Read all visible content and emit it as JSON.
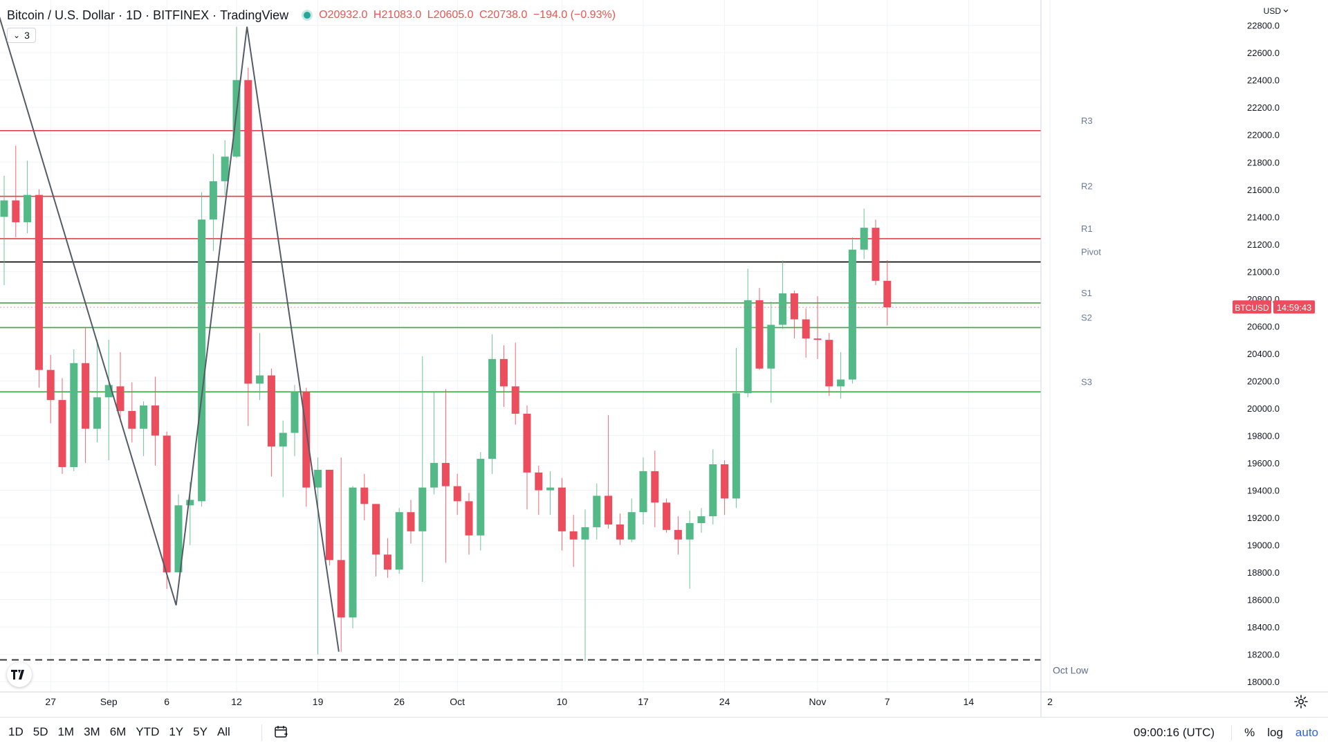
{
  "header": {
    "symbol": "Bitcoin / U.S. Dollar",
    "interval": "1D",
    "exchange": "BITFINEX",
    "source": "TradingView",
    "open_label": "O",
    "open": "20932.0",
    "high_label": "H",
    "high": "21083.0",
    "low_label": "L",
    "low": "20605.0",
    "close_label": "C",
    "close": "20738.0",
    "change": "−194.0 (−0.93%)"
  },
  "indicator_pill": {
    "count": "3"
  },
  "price_axis": {
    "currency": "USD"
  },
  "price_tag": {
    "symbol": "BTCUSD",
    "countdown": "14:59:43"
  },
  "bottom_bar": {
    "ranges": [
      "1D",
      "5D",
      "1M",
      "3M",
      "6M",
      "YTD",
      "1Y",
      "5Y",
      "All"
    ],
    "time": "09:00:16 (UTC)",
    "percent": "%",
    "log": "log",
    "auto": "auto"
  },
  "colors": {
    "up": "#53b987",
    "down": "#eb4d5c",
    "resistance": "#e03e4e",
    "support": "#3ba640",
    "pivot": "#000000",
    "accent": "#2962ff"
  },
  "icons": [
    "chevron-down-icon",
    "tradingview-logo-icon",
    "calendar-icon",
    "gear-icon"
  ],
  "chart_data": {
    "type": "candlestick",
    "ylim": [
      17900,
      22950
    ],
    "y_ticks": [
      18000,
      18200,
      18400,
      18600,
      18800,
      19000,
      19200,
      19400,
      19600,
      19800,
      20000,
      20200,
      20400,
      20600,
      20800,
      21000,
      21200,
      21400,
      21600,
      21800,
      22000,
      22200,
      22400,
      22600,
      22800
    ],
    "x_ticks": [
      {
        "label": "27",
        "i": 4
      },
      {
        "label": "Sep",
        "i": 9
      },
      {
        "label": "6",
        "i": 14
      },
      {
        "label": "12",
        "i": 20
      },
      {
        "label": "19",
        "i": 27
      },
      {
        "label": "26",
        "i": 34
      },
      {
        "label": "Oct",
        "i": 39
      },
      {
        "label": "10",
        "i": 48
      },
      {
        "label": "17",
        "i": 55
      },
      {
        "label": "24",
        "i": 62
      },
      {
        "label": "Nov",
        "i": 70
      },
      {
        "label": "7",
        "i": 76
      },
      {
        "label": "14",
        "i": 83
      },
      {
        "label": "2",
        "i": 90
      }
    ],
    "candles": [
      {
        "o": 21400,
        "h": 21700,
        "l": 20900,
        "c": 21520
      },
      {
        "o": 21520,
        "h": 21920,
        "l": 21250,
        "c": 21360
      },
      {
        "o": 21360,
        "h": 21810,
        "l": 21280,
        "c": 21560
      },
      {
        "o": 21560,
        "h": 21600,
        "l": 20150,
        "c": 20280
      },
      {
        "o": 20280,
        "h": 20390,
        "l": 19890,
        "c": 20060
      },
      {
        "o": 20060,
        "h": 20220,
        "l": 19520,
        "c": 19570
      },
      {
        "o": 19570,
        "h": 20430,
        "l": 19540,
        "c": 20330
      },
      {
        "o": 20330,
        "h": 20590,
        "l": 19600,
        "c": 19850
      },
      {
        "o": 19850,
        "h": 20500,
        "l": 19750,
        "c": 20080
      },
      {
        "o": 20080,
        "h": 20500,
        "l": 19620,
        "c": 20170
      },
      {
        "o": 20160,
        "h": 20410,
        "l": 19900,
        "c": 19980
      },
      {
        "o": 19980,
        "h": 20190,
        "l": 19750,
        "c": 19850
      },
      {
        "o": 19850,
        "h": 20050,
        "l": 19650,
        "c": 20020
      },
      {
        "o": 20020,
        "h": 20230,
        "l": 19580,
        "c": 19800
      },
      {
        "o": 19800,
        "h": 19830,
        "l": 18680,
        "c": 18800
      },
      {
        "o": 18800,
        "h": 19370,
        "l": 18800,
        "c": 19290
      },
      {
        "o": 19290,
        "h": 19460,
        "l": 19000,
        "c": 19330
      },
      {
        "o": 19320,
        "h": 21580,
        "l": 19280,
        "c": 21380
      },
      {
        "o": 21380,
        "h": 21860,
        "l": 21150,
        "c": 21660
      },
      {
        "o": 21660,
        "h": 21960,
        "l": 21560,
        "c": 21840
      },
      {
        "o": 21840,
        "h": 22790,
        "l": 21830,
        "c": 22400
      },
      {
        "o": 22400,
        "h": 22490,
        "l": 19870,
        "c": 20180
      },
      {
        "o": 20180,
        "h": 20550,
        "l": 20060,
        "c": 20240
      },
      {
        "o": 20240,
        "h": 20290,
        "l": 19500,
        "c": 19720
      },
      {
        "o": 19720,
        "h": 19910,
        "l": 19350,
        "c": 19820
      },
      {
        "o": 19820,
        "h": 20170,
        "l": 19650,
        "c": 20120
      },
      {
        "o": 20120,
        "h": 20150,
        "l": 19280,
        "c": 19420
      },
      {
        "o": 19420,
        "h": 19640,
        "l": 18200,
        "c": 19550
      },
      {
        "o": 19550,
        "h": 19550,
        "l": 18850,
        "c": 18890
      },
      {
        "o": 18890,
        "h": 19640,
        "l": 18220,
        "c": 18470
      },
      {
        "o": 18470,
        "h": 19430,
        "l": 18390,
        "c": 19420
      },
      {
        "o": 19420,
        "h": 19520,
        "l": 19180,
        "c": 19300
      },
      {
        "o": 19300,
        "h": 19300,
        "l": 18770,
        "c": 18930
      },
      {
        "o": 18930,
        "h": 19050,
        "l": 18760,
        "c": 18820
      },
      {
        "o": 18820,
        "h": 19270,
        "l": 18790,
        "c": 19240
      },
      {
        "o": 19240,
        "h": 19330,
        "l": 19010,
        "c": 19100
      },
      {
        "o": 19100,
        "h": 20380,
        "l": 18730,
        "c": 19420
      },
      {
        "o": 19420,
        "h": 20120,
        "l": 19370,
        "c": 19600
      },
      {
        "o": 19600,
        "h": 20140,
        "l": 18870,
        "c": 19430
      },
      {
        "o": 19430,
        "h": 19520,
        "l": 19220,
        "c": 19320
      },
      {
        "o": 19320,
        "h": 19380,
        "l": 18930,
        "c": 19070
      },
      {
        "o": 19070,
        "h": 19680,
        "l": 18960,
        "c": 19630
      },
      {
        "o": 19630,
        "h": 20540,
        "l": 19520,
        "c": 20360
      },
      {
        "o": 20360,
        "h": 20460,
        "l": 20010,
        "c": 20160
      },
      {
        "o": 20160,
        "h": 20480,
        "l": 19880,
        "c": 19960
      },
      {
        "o": 19960,
        "h": 20020,
        "l": 19260,
        "c": 19530
      },
      {
        "o": 19530,
        "h": 19580,
        "l": 19220,
        "c": 19400
      },
      {
        "o": 19400,
        "h": 19540,
        "l": 19220,
        "c": 19420
      },
      {
        "o": 19420,
        "h": 19490,
        "l": 18960,
        "c": 19100
      },
      {
        "o": 19100,
        "h": 19220,
        "l": 18840,
        "c": 19040
      },
      {
        "o": 19040,
        "h": 19260,
        "l": 18150,
        "c": 19130
      },
      {
        "o": 19130,
        "h": 19450,
        "l": 19040,
        "c": 19360
      },
      {
        "o": 19360,
        "h": 19950,
        "l": 19120,
        "c": 19150
      },
      {
        "o": 19150,
        "h": 19230,
        "l": 19000,
        "c": 19040
      },
      {
        "o": 19040,
        "h": 19340,
        "l": 19020,
        "c": 19240
      },
      {
        "o": 19240,
        "h": 19640,
        "l": 19150,
        "c": 19540
      },
      {
        "o": 19540,
        "h": 19690,
        "l": 19130,
        "c": 19310
      },
      {
        "o": 19310,
        "h": 19340,
        "l": 19090,
        "c": 19110
      },
      {
        "o": 19110,
        "h": 19210,
        "l": 18930,
        "c": 19040
      },
      {
        "o": 19040,
        "h": 19250,
        "l": 18680,
        "c": 19160
      },
      {
        "o": 19160,
        "h": 19270,
        "l": 19090,
        "c": 19210
      },
      {
        "o": 19210,
        "h": 19700,
        "l": 19150,
        "c": 19590
      },
      {
        "o": 19590,
        "h": 19620,
        "l": 19220,
        "c": 19340
      },
      {
        "o": 19340,
        "h": 20440,
        "l": 19270,
        "c": 20110
      },
      {
        "o": 20110,
        "h": 21020,
        "l": 20080,
        "c": 20790
      },
      {
        "o": 20790,
        "h": 20880,
        "l": 20280,
        "c": 20290
      },
      {
        "o": 20290,
        "h": 20780,
        "l": 20040,
        "c": 20610
      },
      {
        "o": 20610,
        "h": 21080,
        "l": 20580,
        "c": 20840
      },
      {
        "o": 20840,
        "h": 20860,
        "l": 20510,
        "c": 20650
      },
      {
        "o": 20650,
        "h": 20730,
        "l": 20370,
        "c": 20510
      },
      {
        "o": 20510,
        "h": 20820,
        "l": 20360,
        "c": 20500
      },
      {
        "o": 20500,
        "h": 20550,
        "l": 20090,
        "c": 20160
      },
      {
        "o": 20160,
        "h": 20410,
        "l": 20070,
        "c": 20210
      },
      {
        "o": 20210,
        "h": 21250,
        "l": 20180,
        "c": 21160
      },
      {
        "o": 21160,
        "h": 21460,
        "l": 21090,
        "c": 21320
      },
      {
        "o": 21320,
        "h": 21380,
        "l": 20900,
        "c": 20932
      },
      {
        "o": 20932,
        "h": 21083,
        "l": 20605,
        "c": 20738
      }
    ],
    "levels": [
      {
        "name": "R3",
        "value": 22030,
        "kind": "resistance"
      },
      {
        "name": "R2",
        "value": 21550,
        "kind": "resistance"
      },
      {
        "name": "R1",
        "value": 21240,
        "kind": "resistance"
      },
      {
        "name": "Pivot",
        "value": 21070,
        "kind": "pivot"
      },
      {
        "name": "S1",
        "value": 20770,
        "kind": "support"
      },
      {
        "name": "S2",
        "value": 20590,
        "kind": "support"
      },
      {
        "name": "S3",
        "value": 20120,
        "kind": "support"
      }
    ],
    "oct_low": {
      "label": "Oct Low",
      "value": 18160
    },
    "zigzag": [
      {
        "i": -0.4,
        "v": 22860
      },
      {
        "i": 14.8,
        "v": 18560
      },
      {
        "i": 20.9,
        "v": 22790
      },
      {
        "i": 28.8,
        "v": 18220
      }
    ],
    "last_price": 20738
  }
}
